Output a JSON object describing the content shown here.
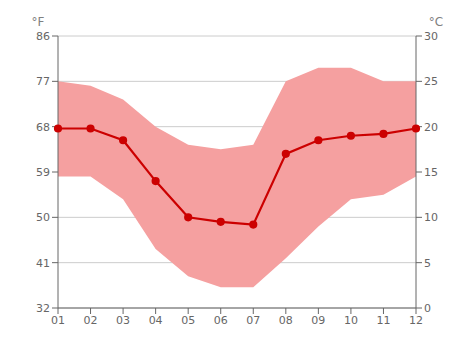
{
  "chart_data": {
    "type": "line",
    "categories": [
      "01",
      "02",
      "03",
      "04",
      "05",
      "06",
      "07",
      "08",
      "09",
      "10",
      "11",
      "12"
    ],
    "series": [
      {
        "type": "area",
        "color": "#f5a0a0",
        "low": [
          14.5,
          14.5,
          12,
          6.5,
          3.5,
          2.3,
          2.3,
          5.5,
          9,
          12,
          12.5,
          14.5
        ],
        "high": [
          25,
          24.5,
          23,
          20,
          18,
          17.5,
          18,
          25,
          26.5,
          26.5,
          25,
          25
        ]
      },
      {
        "type": "line",
        "color": "#cc0000",
        "marker": "circle",
        "values": [
          19.8,
          19.8,
          18.5,
          14,
          10,
          9.5,
          9.2,
          17,
          18.5,
          19,
          19.2,
          19.8
        ]
      }
    ],
    "ylabel": "°C",
    "ylim": [
      0,
      30
    ],
    "yticks": [
      0,
      5,
      10,
      15,
      20,
      25,
      30
    ],
    "y2label": "°F",
    "y2lim": [
      32,
      86
    ],
    "y2ticks": [
      32,
      41,
      50,
      59,
      68,
      77,
      86
    ],
    "grid": true
  }
}
